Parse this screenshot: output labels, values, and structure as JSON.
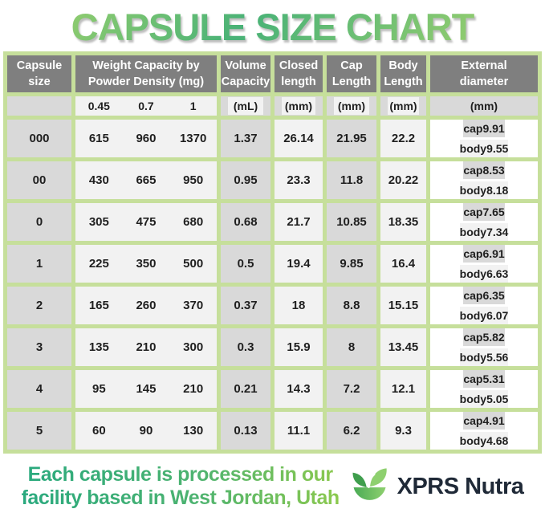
{
  "title": "CAPSULE SIZE CHART",
  "colors": {
    "border_green": "#c6df9b",
    "header_gray": "#7f7f7f",
    "cell_gray": "#d9d9d9",
    "cell_light": "#f2f2f2",
    "title_gradient_light": "#a8d46d",
    "title_gradient_dark": "#49b277",
    "footer_gradient_left": "#29a97e",
    "footer_gradient_right": "#8cc94e",
    "brand_text": "#1f2937"
  },
  "table": {
    "headers": {
      "capsule_size": "Capsule size",
      "weight": "Weight Capacity by\nPowder Density (mg)",
      "volume": "Volume\nCapacity",
      "closed": "Closed\nlength",
      "cap": "Cap\nLength",
      "body": "Body\nLength",
      "external": "External\ndiameter"
    },
    "units": {
      "densities": [
        "0.45",
        "0.7",
        "1"
      ],
      "volume": "(mL)",
      "closed": "(mm)",
      "cap": "(mm)",
      "body": "(mm)",
      "external": "(mm)"
    },
    "external_labels": {
      "cap": "cap",
      "body": "body"
    },
    "rows": [
      {
        "size": "000",
        "weights": [
          "615",
          "960",
          "1370"
        ],
        "volume": "1.37",
        "closed_length": "26.14",
        "cap_length": "21.95",
        "body_length": "22.2",
        "external": {
          "cap": "9.91",
          "body": "9.55"
        }
      },
      {
        "size": "00",
        "weights": [
          "430",
          "665",
          "950"
        ],
        "volume": "0.95",
        "closed_length": "23.3",
        "cap_length": "11.8",
        "body_length": "20.22",
        "external": {
          "cap": "8.53",
          "body": "8.18"
        }
      },
      {
        "size": "0",
        "weights": [
          "305",
          "475",
          "680"
        ],
        "volume": "0.68",
        "closed_length": "21.7",
        "cap_length": "10.85",
        "body_length": "18.35",
        "external": {
          "cap": "7.65",
          "body": "7.34"
        }
      },
      {
        "size": "1",
        "weights": [
          "225",
          "350",
          "500"
        ],
        "volume": "0.5",
        "closed_length": "19.4",
        "cap_length": "9.85",
        "body_length": "16.4",
        "external": {
          "cap": "6.91",
          "body": "6.63"
        }
      },
      {
        "size": "2",
        "weights": [
          "165",
          "260",
          "370"
        ],
        "volume": "0.37",
        "closed_length": "18",
        "cap_length": "8.8",
        "body_length": "15.15",
        "external": {
          "cap": "6.35",
          "body": "6.07"
        }
      },
      {
        "size": "3",
        "weights": [
          "135",
          "210",
          "300"
        ],
        "volume": "0.3",
        "closed_length": "15.9",
        "cap_length": "8",
        "body_length": "13.45",
        "external": {
          "cap": "5.82",
          "body": "5.56"
        }
      },
      {
        "size": "4",
        "weights": [
          "95",
          "145",
          "210"
        ],
        "volume": "0.21",
        "closed_length": "14.3",
        "cap_length": "7.2",
        "body_length": "12.1",
        "external": {
          "cap": "5.31",
          "body": "5.05"
        }
      },
      {
        "size": "5",
        "weights": [
          "60",
          "90",
          "130"
        ],
        "volume": "0.13",
        "closed_length": "11.1",
        "cap_length": "6.2",
        "body_length": "9.3",
        "external": {
          "cap": "4.91",
          "body": "4.68"
        }
      }
    ]
  },
  "footer": {
    "text": "Each capsule is processed in our\nfacility based in West Jordan, Utah",
    "brand": "XPRS Nutra",
    "logo": "sprout-in-bowl-icon"
  },
  "chart_data": {
    "type": "table",
    "title": "CAPSULE SIZE CHART",
    "columns": [
      "Capsule size",
      "Weight Capacity 0.45 density (mg)",
      "Weight Capacity 0.7 density (mg)",
      "Weight Capacity 1 density (mg)",
      "Volume Capacity (mL)",
      "Closed length (mm)",
      "Cap Length (mm)",
      "Body Length (mm)",
      "External diameter cap (mm)",
      "External diameter body (mm)"
    ],
    "rows": [
      [
        "000",
        615,
        960,
        1370,
        1.37,
        26.14,
        21.95,
        22.2,
        9.91,
        9.55
      ],
      [
        "00",
        430,
        665,
        950,
        0.95,
        23.3,
        11.8,
        20.22,
        8.53,
        8.18
      ],
      [
        "0",
        305,
        475,
        680,
        0.68,
        21.7,
        10.85,
        18.35,
        7.65,
        7.34
      ],
      [
        "1",
        225,
        350,
        500,
        0.5,
        19.4,
        9.85,
        16.4,
        6.91,
        6.63
      ],
      [
        "2",
        165,
        260,
        370,
        0.37,
        18,
        8.8,
        15.15,
        6.35,
        6.07
      ],
      [
        "3",
        135,
        210,
        300,
        0.3,
        15.9,
        8,
        13.45,
        5.82,
        5.56
      ],
      [
        "4",
        95,
        145,
        210,
        0.21,
        14.3,
        7.2,
        12.1,
        5.31,
        5.05
      ],
      [
        "5",
        60,
        90,
        130,
        0.13,
        11.1,
        6.2,
        9.3,
        4.91,
        4.68
      ]
    ]
  }
}
